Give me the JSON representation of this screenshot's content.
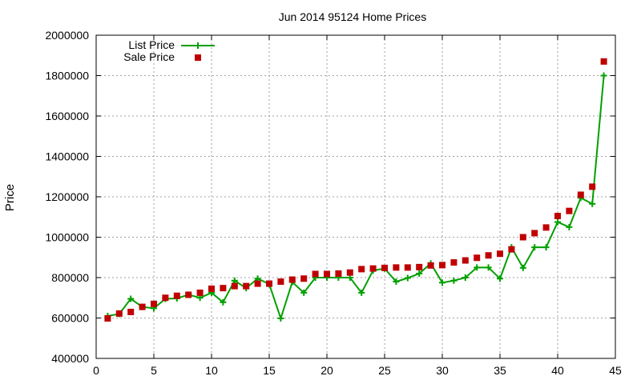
{
  "chart_data": {
    "type": "line",
    "title": "Jun 2014 95124 Home Prices",
    "xlabel": "",
    "ylabel": "Price",
    "xlim": [
      0,
      45
    ],
    "ylim": [
      400000,
      2000000
    ],
    "xticks": [
      0,
      5,
      10,
      15,
      20,
      25,
      30,
      35,
      40,
      45
    ],
    "yticks": [
      400000,
      600000,
      800000,
      1000000,
      1200000,
      1400000,
      1600000,
      1800000,
      2000000
    ],
    "grid": true,
    "legend_position": "top-left",
    "x": [
      1,
      2,
      3,
      4,
      5,
      6,
      7,
      8,
      9,
      10,
      11,
      12,
      13,
      14,
      15,
      16,
      17,
      18,
      19,
      20,
      21,
      22,
      23,
      24,
      25,
      26,
      27,
      28,
      29,
      30,
      31,
      32,
      33,
      34,
      35,
      36,
      37,
      38,
      39,
      40,
      41,
      42,
      43,
      44
    ],
    "series": [
      {
        "name": "List Price",
        "style": "line-plus",
        "color": "#00a000",
        "values": [
          610000,
          620000,
          695000,
          655000,
          648000,
          695000,
          697000,
          715000,
          700000,
          725000,
          678000,
          785000,
          748000,
          795000,
          768000,
          598000,
          778000,
          725000,
          800000,
          800000,
          800000,
          800000,
          725000,
          835000,
          845000,
          780000,
          798000,
          820000,
          870000,
          775000,
          785000,
          800000,
          850000,
          850000,
          795000,
          950000,
          848000,
          950000,
          950000,
          1075000,
          1050000,
          1195000,
          1165000,
          1800000
        ]
      },
      {
        "name": "Sale Price",
        "style": "square-points",
        "color": "#c00000",
        "values": [
          598000,
          622000,
          630000,
          655000,
          670000,
          700000,
          710000,
          715000,
          725000,
          745000,
          748000,
          758000,
          758000,
          770000,
          770000,
          780000,
          790000,
          795000,
          818000,
          818000,
          820000,
          825000,
          842000,
          845000,
          848000,
          850000,
          850000,
          852000,
          860000,
          862000,
          875000,
          885000,
          898000,
          910000,
          918000,
          940000,
          1000000,
          1020000,
          1048000,
          1105000,
          1130000,
          1210000,
          1250000,
          1870000
        ]
      }
    ]
  }
}
